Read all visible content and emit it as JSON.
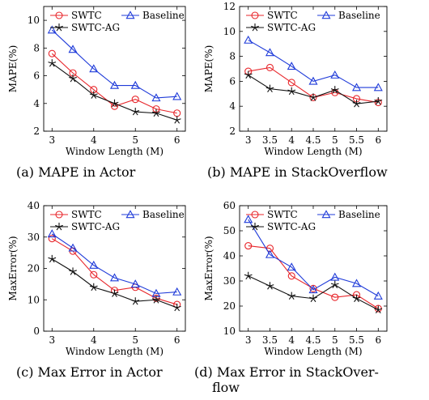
{
  "figure": {
    "captions": {
      "a": "(a) MAPE in Actor",
      "b": "(b) MAPE in StackOverflow",
      "c": "(c) Max Error in Actor",
      "d_line1": "(d) Max Error in StackOver-",
      "d_line2": "flow"
    },
    "colors": {
      "SWTC": "#e8262b",
      "Baseline": "#1f3bd9",
      "SWTC-AG": "#111111"
    }
  },
  "chart_data": [
    {
      "type": "line",
      "xlabel": "Window Length (M)",
      "ylabel": "MAPE(%)",
      "xlim": [
        2.8,
        6.2
      ],
      "ylim": [
        2,
        11
      ],
      "xticks": [
        3,
        4,
        5,
        6
      ],
      "yticks": [
        2,
        4,
        6,
        8,
        10
      ],
      "grid": false,
      "legend": "top",
      "x": [
        3,
        3.5,
        4,
        4.5,
        5,
        5.5,
        6
      ],
      "series": [
        {
          "name": "SWTC",
          "marker": "circle",
          "values": [
            7.6,
            6.2,
            5.0,
            3.8,
            4.3,
            3.6,
            3.3
          ]
        },
        {
          "name": "Baseline",
          "marker": "triangle",
          "values": [
            9.3,
            7.9,
            6.5,
            5.3,
            5.3,
            4.4,
            4.5
          ]
        },
        {
          "name": "SWTC-AG",
          "marker": "star",
          "values": [
            6.9,
            5.8,
            4.6,
            4.0,
            3.4,
            3.3,
            2.8
          ]
        }
      ]
    },
    {
      "type": "line",
      "xlabel": "Window Length (M)",
      "ylabel": "MAPE(%)",
      "xlim": [
        2.8,
        6.2
      ],
      "ylim": [
        2,
        12
      ],
      "xticks": [
        3,
        3.5,
        4,
        4.5,
        5,
        5.5,
        6
      ],
      "yticks": [
        2,
        4,
        6,
        8,
        10,
        12
      ],
      "grid": false,
      "legend": "top",
      "x": [
        3,
        3.5,
        4,
        4.5,
        5,
        5.5,
        6
      ],
      "series": [
        {
          "name": "SWTC",
          "marker": "circle",
          "values": [
            6.8,
            7.1,
            5.9,
            4.7,
            5.1,
            4.6,
            4.3
          ]
        },
        {
          "name": "Baseline",
          "marker": "triangle",
          "values": [
            9.3,
            8.3,
            7.2,
            6.0,
            6.5,
            5.5,
            5.5
          ]
        },
        {
          "name": "SWTC-AG",
          "marker": "star",
          "values": [
            6.5,
            5.4,
            5.2,
            4.7,
            5.3,
            4.2,
            4.4
          ]
        }
      ]
    },
    {
      "type": "line",
      "xlabel": "Window Length (M)",
      "ylabel": "MaxError(%)",
      "xlim": [
        2.8,
        6.2
      ],
      "ylim": [
        0,
        40
      ],
      "xticks": [
        3,
        4,
        5,
        6
      ],
      "yticks": [
        0,
        10,
        20,
        30,
        40
      ],
      "grid": false,
      "legend": "top",
      "x": [
        3,
        3.5,
        4,
        4.5,
        5,
        5.5,
        6
      ],
      "series": [
        {
          "name": "SWTC",
          "marker": "circle",
          "values": [
            29.5,
            25.5,
            18.0,
            13.0,
            14.0,
            10.5,
            8.5
          ]
        },
        {
          "name": "Baseline",
          "marker": "triangle",
          "values": [
            31.0,
            26.5,
            21.0,
            17.0,
            15.0,
            12.0,
            12.5
          ]
        },
        {
          "name": "SWTC-AG",
          "marker": "star",
          "values": [
            23.0,
            19.0,
            14.0,
            12.0,
            9.5,
            10.0,
            7.5
          ]
        }
      ]
    },
    {
      "type": "line",
      "xlabel": "Window Length (M)",
      "ylabel": "MaxError(%)",
      "xlim": [
        2.8,
        6.2
      ],
      "ylim": [
        10,
        60
      ],
      "xticks": [
        3,
        3.5,
        4,
        4.5,
        5,
        5.5,
        6
      ],
      "yticks": [
        10,
        20,
        30,
        40,
        50,
        60
      ],
      "grid": false,
      "legend": "top",
      "x": [
        3,
        3.5,
        4,
        4.5,
        5,
        5.5,
        6
      ],
      "series": [
        {
          "name": "SWTC",
          "marker": "circle",
          "values": [
            44.0,
            43.0,
            32.0,
            27.0,
            23.5,
            24.5,
            19.0
          ]
        },
        {
          "name": "Baseline",
          "marker": "triangle",
          "values": [
            54.5,
            40.5,
            35.5,
            26.5,
            31.5,
            29.0,
            24.0
          ]
        },
        {
          "name": "SWTC-AG",
          "marker": "star",
          "values": [
            32.0,
            28.0,
            24.0,
            23.0,
            28.5,
            23.0,
            18.5
          ]
        }
      ]
    }
  ]
}
